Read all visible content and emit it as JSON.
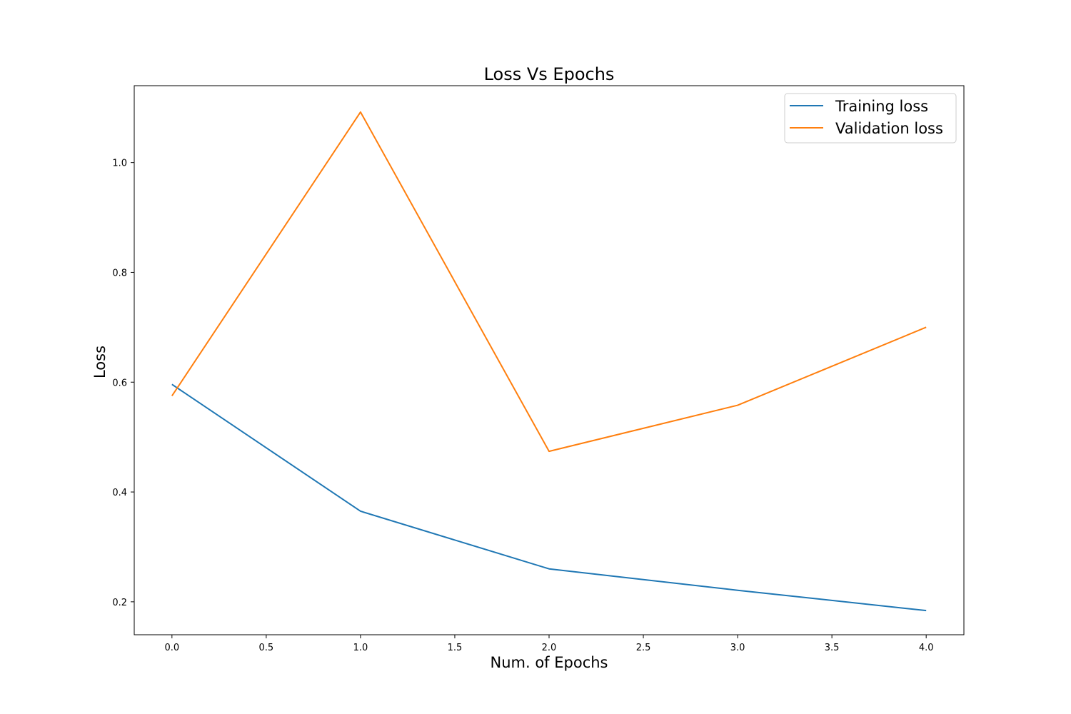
{
  "chart_data": {
    "type": "line",
    "title": "Loss Vs Epochs",
    "xlabel": "Num. of Epochs",
    "ylabel": "Loss",
    "x": [
      0,
      1,
      2,
      3,
      4
    ],
    "xlim": [
      -0.2,
      4.2
    ],
    "ylim": [
      0.14,
      1.14
    ],
    "xticks": [
      "0.0",
      "0.5",
      "1.0",
      "1.5",
      "2.0",
      "2.5",
      "3.0",
      "3.5",
      "4.0"
    ],
    "yticks": [
      "0.2",
      "0.4",
      "0.6",
      "0.8",
      "1.0"
    ],
    "grid": false,
    "legend_position": "top-right",
    "series": [
      {
        "name": "Training loss",
        "color": "#1f77b4",
        "values": [
          0.596,
          0.365,
          0.26,
          0.221,
          0.184
        ]
      },
      {
        "name": "Validation loss",
        "color": "#ff7f0e",
        "values": [
          0.575,
          1.092,
          0.474,
          0.558,
          0.7
        ]
      }
    ]
  }
}
